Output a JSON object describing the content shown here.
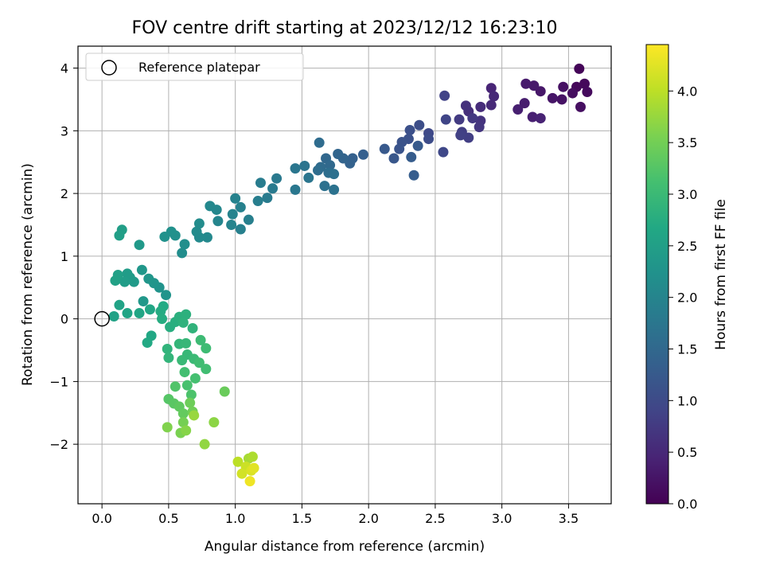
{
  "chart_data": {
    "type": "scatter",
    "title": "FOV centre drift starting at 2023/12/12 16:23:10",
    "xlabel": "Angular distance from reference (arcmin)",
    "ylabel": "Rotation from reference (arcmin)",
    "xlim": [
      -0.18,
      3.82
    ],
    "ylim": [
      -2.95,
      4.35
    ],
    "x_ticks": [
      0.0,
      0.5,
      1.0,
      1.5,
      2.0,
      2.5,
      3.0,
      3.5
    ],
    "x_tick_labels": [
      "0.0",
      "0.5",
      "1.0",
      "1.5",
      "2.0",
      "2.5",
      "3.0",
      "3.5"
    ],
    "y_ticks": [
      -2,
      -1,
      0,
      1,
      2,
      3,
      4
    ],
    "y_tick_labels": [
      "−2",
      "−1",
      "0",
      "1",
      "2",
      "3",
      "4"
    ],
    "grid": true,
    "legend": {
      "placement": "top-left",
      "entries": [
        {
          "label": "Reference platepar",
          "marker": "open-circle"
        }
      ]
    },
    "reference_point": {
      "x": 0.0,
      "y": 0.0
    },
    "colorbar": {
      "label": "Hours from first FF file",
      "colormap": "viridis",
      "range": [
        0.0,
        4.45
      ],
      "ticks": [
        0.0,
        0.5,
        1.0,
        1.5,
        2.0,
        2.5,
        3.0,
        3.5,
        4.0
      ],
      "tick_labels": [
        "0.0",
        "0.5",
        "1.0",
        "1.5",
        "2.0",
        "2.5",
        "3.0",
        "3.5",
        "4.0"
      ]
    },
    "series": [
      {
        "values": [
          [
            3.58,
            3.99,
            0.05
          ],
          [
            3.56,
            3.7,
            0.08
          ],
          [
            3.62,
            3.75,
            0.1
          ],
          [
            3.64,
            3.62,
            0.12
          ],
          [
            3.53,
            3.6,
            0.15
          ],
          [
            3.59,
            3.38,
            0.18
          ],
          [
            3.46,
            3.7,
            0.2
          ],
          [
            3.45,
            3.5,
            0.22
          ],
          [
            3.38,
            3.52,
            0.25
          ],
          [
            3.29,
            3.63,
            0.28
          ],
          [
            3.24,
            3.72,
            0.3
          ],
          [
            3.18,
            3.75,
            0.32
          ],
          [
            3.17,
            3.44,
            0.35
          ],
          [
            3.12,
            3.34,
            0.38
          ],
          [
            3.23,
            3.22,
            0.4
          ],
          [
            3.29,
            3.2,
            0.43
          ],
          [
            2.92,
            3.68,
            0.46
          ],
          [
            2.94,
            3.55,
            0.5
          ],
          [
            2.92,
            3.41,
            0.53
          ],
          [
            2.84,
            3.38,
            0.56
          ],
          [
            2.75,
            3.31,
            0.6
          ],
          [
            2.73,
            3.4,
            0.63
          ],
          [
            2.84,
            3.16,
            0.66
          ],
          [
            2.83,
            3.06,
            0.7
          ],
          [
            2.78,
            3.2,
            0.73
          ],
          [
            2.68,
            3.18,
            0.76
          ],
          [
            2.7,
            2.98,
            0.8
          ],
          [
            2.75,
            2.89,
            0.82
          ],
          [
            2.69,
            2.93,
            0.85
          ],
          [
            2.57,
            3.56,
            0.88
          ],
          [
            2.58,
            3.18,
            0.91
          ],
          [
            2.56,
            2.66,
            0.95
          ],
          [
            2.45,
            2.96,
            0.98
          ],
          [
            2.45,
            2.87,
            1.02
          ],
          [
            2.38,
            3.09,
            1.05
          ],
          [
            2.31,
            3.01,
            1.08
          ],
          [
            2.3,
            2.87,
            1.1
          ],
          [
            2.25,
            2.82,
            1.13
          ],
          [
            2.23,
            2.71,
            1.16
          ],
          [
            2.19,
            2.56,
            1.2
          ],
          [
            2.12,
            2.71,
            1.23
          ],
          [
            2.37,
            2.76,
            1.25
          ],
          [
            2.32,
            2.58,
            1.28
          ],
          [
            2.34,
            2.29,
            1.3
          ],
          [
            1.96,
            2.62,
            1.33
          ],
          [
            1.88,
            2.56,
            1.36
          ],
          [
            1.86,
            2.48,
            1.39
          ],
          [
            1.81,
            2.56,
            1.42
          ],
          [
            1.77,
            2.63,
            1.45
          ],
          [
            1.68,
            2.56,
            1.48
          ],
          [
            1.71,
            2.45,
            1.51
          ],
          [
            1.64,
            2.42,
            1.54
          ],
          [
            1.63,
            2.81,
            1.56
          ],
          [
            1.62,
            2.37,
            1.58
          ],
          [
            1.7,
            2.33,
            1.61
          ],
          [
            1.74,
            2.31,
            1.64
          ],
          [
            1.67,
            2.12,
            1.66
          ],
          [
            1.74,
            2.06,
            1.68
          ],
          [
            1.52,
            2.44,
            1.7
          ],
          [
            1.55,
            2.25,
            1.72
          ],
          [
            1.45,
            2.4,
            1.75
          ],
          [
            1.45,
            2.06,
            1.77
          ],
          [
            1.31,
            2.24,
            1.8
          ],
          [
            1.28,
            2.08,
            1.82
          ],
          [
            1.24,
            1.93,
            1.84
          ],
          [
            1.19,
            2.17,
            1.86
          ],
          [
            1.17,
            1.88,
            1.88
          ],
          [
            1.1,
            1.58,
            1.9
          ],
          [
            1.04,
            1.43,
            1.92
          ],
          [
            1.04,
            1.78,
            1.94
          ],
          [
            1.0,
            1.92,
            1.96
          ],
          [
            0.98,
            1.67,
            1.98
          ],
          [
            0.97,
            1.5,
            2.0
          ],
          [
            0.87,
            1.56,
            2.02
          ],
          [
            0.86,
            1.74,
            2.04
          ],
          [
            0.81,
            1.8,
            2.06
          ],
          [
            0.79,
            1.3,
            2.08
          ],
          [
            0.73,
            1.3,
            2.1
          ],
          [
            0.71,
            1.39,
            2.12
          ],
          [
            0.73,
            1.52,
            2.14
          ],
          [
            0.6,
            1.05,
            2.16
          ],
          [
            0.62,
            1.19,
            2.18
          ],
          [
            0.55,
            1.33,
            2.2
          ],
          [
            0.52,
            1.39,
            2.22
          ],
          [
            0.47,
            1.31,
            2.24
          ],
          [
            0.43,
            0.5,
            2.26
          ],
          [
            0.48,
            0.38,
            2.28
          ],
          [
            0.39,
            0.57,
            2.3
          ],
          [
            0.35,
            0.64,
            2.32
          ],
          [
            0.3,
            0.78,
            2.34
          ],
          [
            0.31,
            0.28,
            2.36
          ],
          [
            0.28,
            1.18,
            2.38
          ],
          [
            0.24,
            0.59,
            2.4
          ],
          [
            0.21,
            0.66,
            2.42
          ],
          [
            0.19,
            0.72,
            2.44
          ],
          [
            0.17,
            0.59,
            2.46
          ],
          [
            0.15,
            1.42,
            2.48
          ],
          [
            0.13,
            1.33,
            2.5
          ],
          [
            0.12,
            0.7,
            2.52
          ],
          [
            0.1,
            0.61,
            2.54
          ],
          [
            0.09,
            0.04,
            2.56
          ],
          [
            0.13,
            0.22,
            2.58
          ],
          [
            0.19,
            0.09,
            2.6
          ],
          [
            0.28,
            0.09,
            2.62
          ],
          [
            0.36,
            0.15,
            2.64
          ],
          [
            0.37,
            -0.27,
            2.66
          ],
          [
            0.34,
            -0.38,
            2.68
          ],
          [
            0.46,
            0.2,
            2.7
          ],
          [
            0.44,
            0.12,
            2.72
          ],
          [
            0.45,
            0.0,
            2.74
          ],
          [
            0.51,
            -0.13,
            2.76
          ],
          [
            0.55,
            -0.05,
            2.78
          ],
          [
            0.58,
            0.03,
            2.8
          ],
          [
            0.63,
            0.07,
            2.82
          ],
          [
            0.61,
            -0.06,
            2.84
          ],
          [
            0.68,
            -0.15,
            2.86
          ],
          [
            0.49,
            -0.48,
            2.88
          ],
          [
            0.5,
            -0.62,
            2.9
          ],
          [
            0.58,
            -0.4,
            2.92
          ],
          [
            0.63,
            -0.39,
            2.94
          ],
          [
            0.64,
            -0.57,
            2.96
          ],
          [
            0.6,
            -0.66,
            2.98
          ],
          [
            0.69,
            -0.64,
            3.0
          ],
          [
            0.74,
            -0.34,
            3.02
          ],
          [
            0.78,
            -0.47,
            3.04
          ],
          [
            0.73,
            -0.7,
            3.06
          ],
          [
            0.78,
            -0.8,
            3.08
          ],
          [
            0.62,
            -0.85,
            3.1
          ],
          [
            0.7,
            -0.95,
            3.12
          ],
          [
            0.64,
            -1.06,
            3.15
          ],
          [
            0.67,
            -1.21,
            3.18
          ],
          [
            0.55,
            -1.08,
            3.22
          ],
          [
            0.5,
            -1.28,
            3.26
          ],
          [
            0.54,
            -1.35,
            3.3
          ],
          [
            0.58,
            -1.4,
            3.34
          ],
          [
            0.61,
            -1.51,
            3.38
          ],
          [
            0.92,
            -1.16,
            3.42
          ],
          [
            0.66,
            -1.34,
            3.45
          ],
          [
            0.68,
            -1.48,
            3.48
          ],
          [
            0.61,
            -1.65,
            3.52
          ],
          [
            0.59,
            -1.82,
            3.56
          ],
          [
            0.49,
            -1.73,
            3.6
          ],
          [
            0.63,
            -1.78,
            3.64
          ],
          [
            0.84,
            -1.65,
            3.68
          ],
          [
            0.77,
            -2.0,
            3.72
          ],
          [
            0.69,
            -1.54,
            3.76
          ],
          [
            1.1,
            -2.23,
            3.85
          ],
          [
            1.13,
            -2.2,
            3.9
          ],
          [
            1.02,
            -2.28,
            4.0
          ],
          [
            1.08,
            -2.36,
            4.1
          ],
          [
            1.05,
            -2.47,
            4.15
          ],
          [
            1.12,
            -2.42,
            4.2
          ],
          [
            1.14,
            -2.38,
            4.25
          ],
          [
            1.11,
            -2.59,
            4.35
          ]
        ]
      }
    ]
  }
}
